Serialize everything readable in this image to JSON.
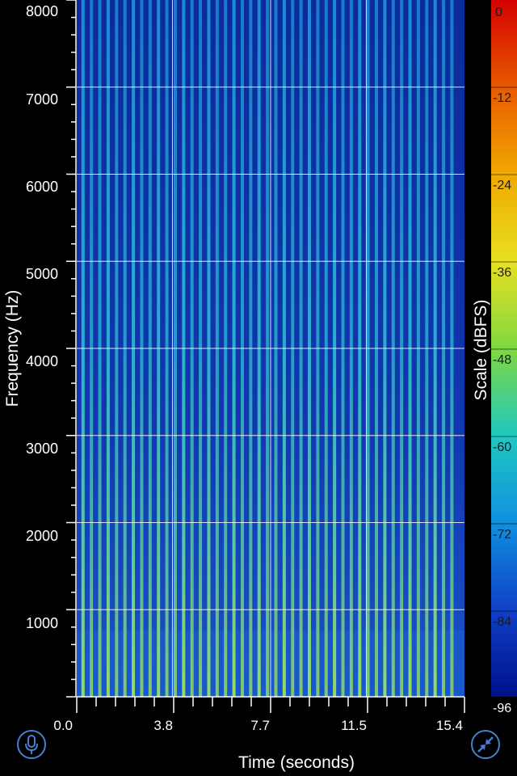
{
  "chart_data": {
    "type": "heatmap",
    "ylabel": "Frequency (Hz)",
    "xlabel": "Time (seconds)",
    "y_ticks": [
      "1000",
      "2000",
      "3000",
      "4000",
      "5000",
      "6000",
      "7000",
      "8000"
    ],
    "ylim": [
      0,
      8000
    ],
    "x_ticks": [
      "0.0",
      "3.8",
      "7.7",
      "11.5",
      "15.4"
    ],
    "xlim": [
      0.0,
      15.4
    ],
    "grid": true,
    "colorbar": {
      "label": "Scale (dBFS)",
      "ticks": [
        "0",
        "-12",
        "-24",
        "-36",
        "-48",
        "-60",
        "-72",
        "-84",
        "-96"
      ],
      "range": [
        -96,
        0
      ],
      "colors": [
        "#d40000",
        "#e85a00",
        "#f0a800",
        "#e8e020",
        "#80d840",
        "#20c8c0",
        "#1090e0",
        "#1040c8",
        "#00108a"
      ]
    },
    "description_values": {
      "signal_end_time": 14.9,
      "tone_count": 45,
      "background_level_dbfs": -84,
      "peak_level_dbfs": -54
    }
  },
  "controls": {
    "mic_icon": "microphone-icon",
    "zoom_icon": "collapse-arrows-icon"
  },
  "colors": {
    "accent": "#4a7fd0",
    "background": "#000000"
  }
}
